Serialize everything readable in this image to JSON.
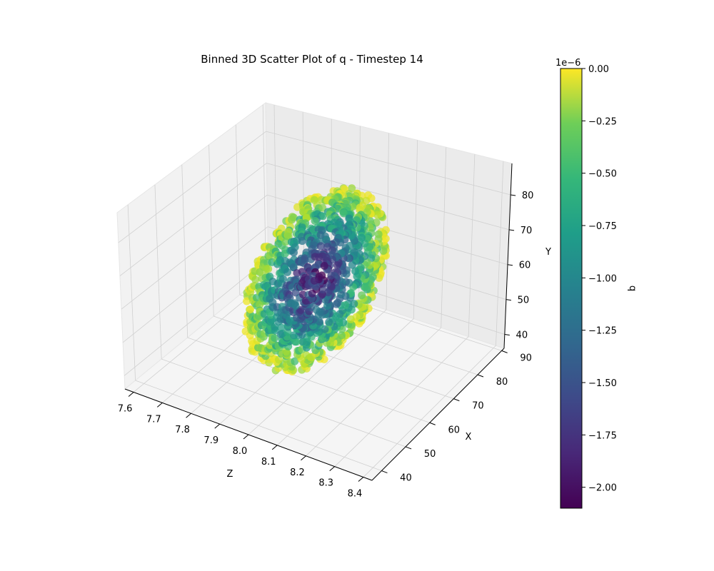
{
  "chart_data": {
    "type": "scatter",
    "projection": "3d",
    "title": "Binned 3D Scatter Plot of q - Timestep 14",
    "axes": {
      "z": {
        "label": "Z",
        "ticks": [
          "7.6",
          "7.7",
          "7.8",
          "7.9",
          "8.0",
          "8.1",
          "8.2",
          "8.3",
          "8.4"
        ],
        "range": [
          7.57,
          8.43
        ]
      },
      "x": {
        "label": "X",
        "ticks": [
          "40",
          "50",
          "60",
          "70",
          "80",
          "90"
        ],
        "range": [
          36,
          91
        ]
      },
      "y": {
        "label": "Y",
        "ticks": [
          "40",
          "50",
          "60",
          "70",
          "80"
        ],
        "range": [
          36,
          89
        ]
      }
    },
    "colorbar": {
      "label": "q",
      "offset_text": "1e−6",
      "colormap": "viridis",
      "ticks": [
        "0.00",
        "−0.25",
        "−0.50",
        "−0.75",
        "−1.00",
        "−1.25",
        "−1.50",
        "−1.75",
        "−2.00"
      ],
      "range": [
        -2.1e-06,
        0.0
      ]
    },
    "point_cloud": {
      "shape": "ellipsoid",
      "center": {
        "z": 8.0,
        "x": 62,
        "y": 60
      },
      "q_at_edge": -5e-08,
      "q_at_center": -1.9e-06
    },
    "grid": true
  }
}
